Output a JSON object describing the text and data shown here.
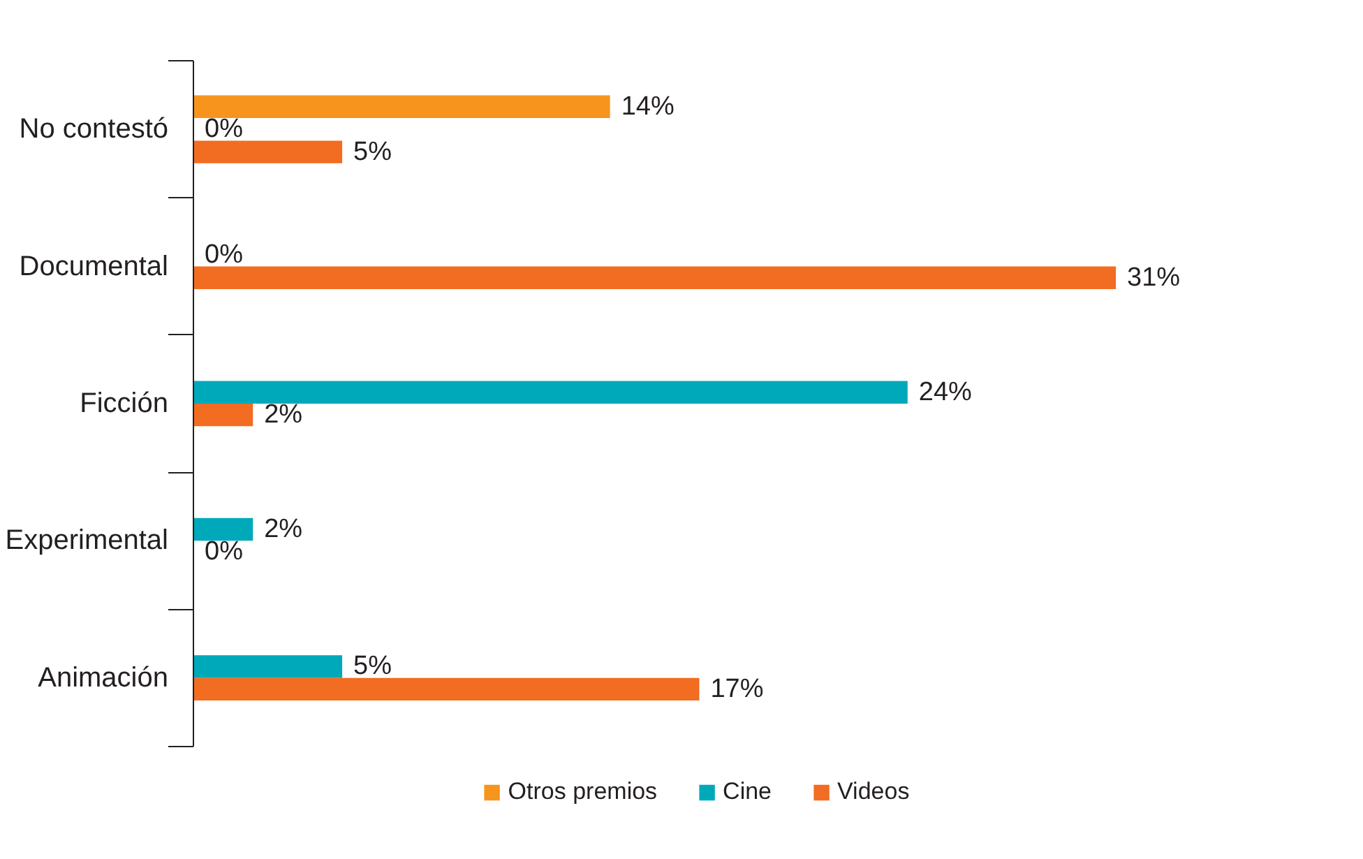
{
  "chart_data": {
    "type": "bar",
    "orientation": "horizontal",
    "categories": [
      "No contestó",
      "Documental",
      "Ficción",
      "Experimental",
      "Animación"
    ],
    "series": [
      {
        "name": "Otros premios",
        "color": "#f7941d",
        "values": [
          14,
          null,
          null,
          null,
          null
        ],
        "value_labels": [
          "14%",
          null,
          null,
          null,
          null
        ]
      },
      {
        "name": "Cine",
        "color": "#00a9ba",
        "values": [
          0,
          0,
          24,
          2,
          5
        ],
        "value_labels": [
          "0%",
          "0%",
          "24%",
          "2%",
          "5%"
        ]
      },
      {
        "name": "Videos",
        "color": "#f26c21",
        "values": [
          5,
          31,
          2,
          0,
          17
        ],
        "value_labels": [
          "5%",
          "31%",
          "2%",
          "0%",
          "17%"
        ]
      }
    ],
    "grid": false,
    "legend": "bottom"
  }
}
